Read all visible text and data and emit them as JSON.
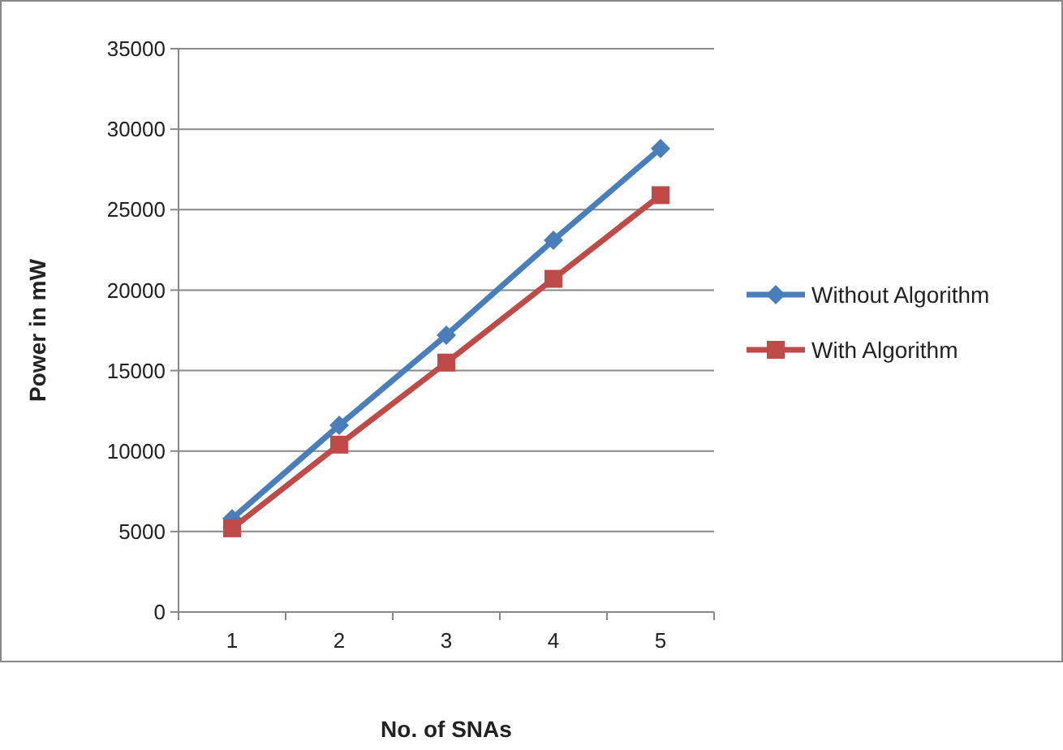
{
  "chart_data": {
    "type": "line",
    "xlabel": "No. of SNAs",
    "ylabel": "Power in mW",
    "categories": [
      "1",
      "2",
      "3",
      "4",
      "5"
    ],
    "series": [
      {
        "name": "Without Algorithm",
        "color": "#4a7ebb",
        "marker": "diamond",
        "values": [
          5800,
          11600,
          17200,
          23100,
          28800
        ]
      },
      {
        "name": "With Algorithm",
        "color": "#be4b48",
        "marker": "square",
        "values": [
          5200,
          10400,
          15500,
          20700,
          25900
        ]
      }
    ],
    "ylim": [
      0,
      35000
    ],
    "yticks": [
      0,
      5000,
      10000,
      15000,
      20000,
      25000,
      30000,
      35000
    ],
    "grid": "y",
    "legend": "right"
  }
}
